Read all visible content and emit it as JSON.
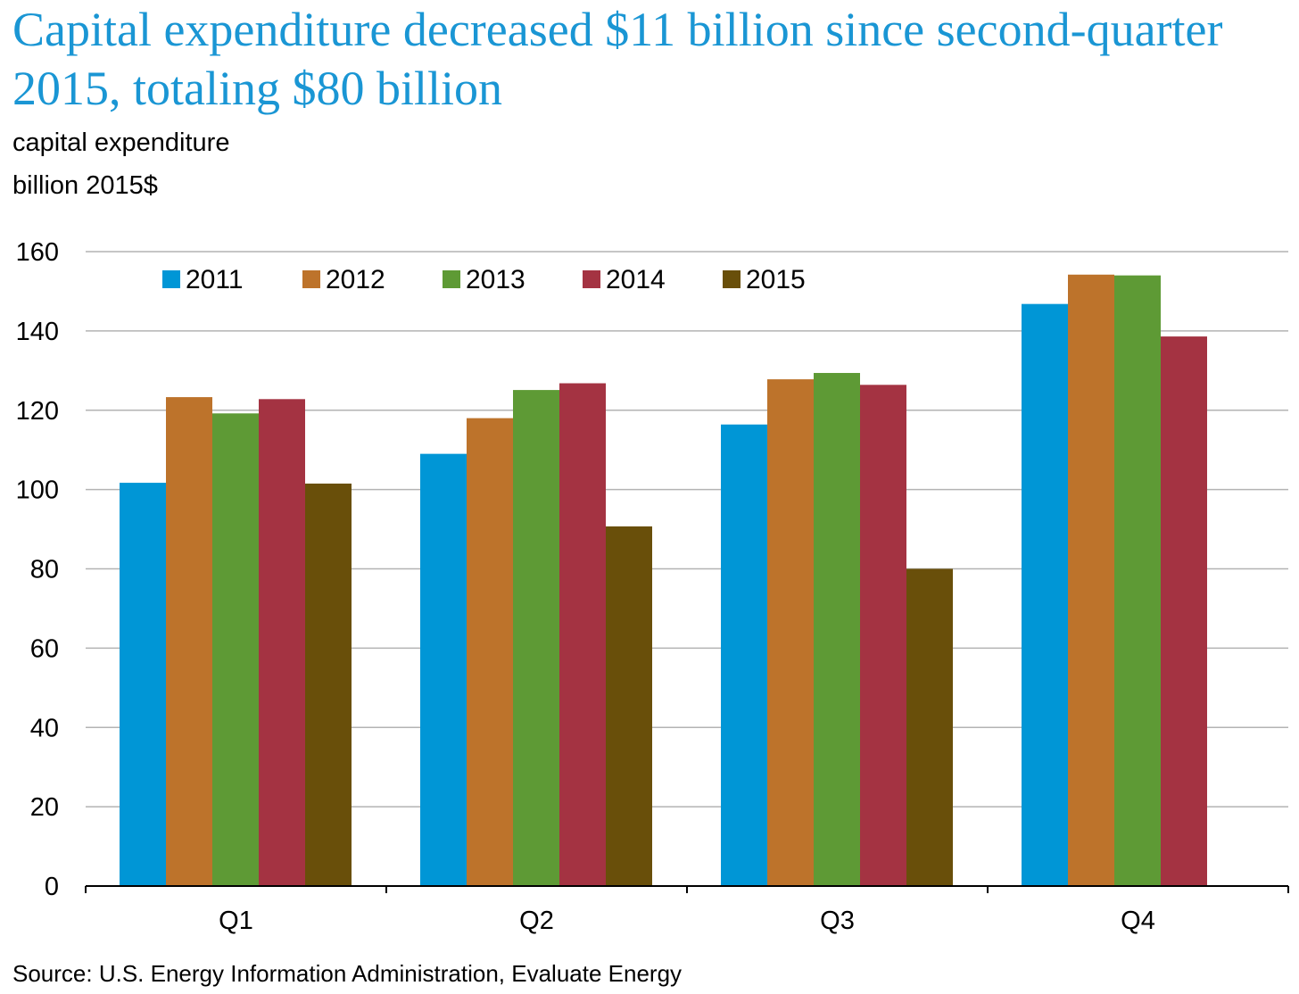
{
  "title": "Capital expenditure decreased $11 billion since second-quarter 2015, totaling $80 billion",
  "unit_line_1": "capital expenditure",
  "unit_line_2": "billion 2015$",
  "source": "Source: U.S. Energy Information Administration, Evaluate Energy",
  "colors": {
    "2011": "#0096d6",
    "2012": "#bd732b",
    "2013": "#5e9a35",
    "2014": "#a43342",
    "2015": "#694f0a",
    "grid": "#b3b3b3",
    "title": "#1a96d4"
  },
  "chart_data": {
    "type": "bar",
    "categories": [
      "Q1",
      "Q2",
      "Q3",
      "Q4"
    ],
    "series": [
      {
        "name": "2011",
        "values": [
          101.7,
          109.0,
          116.4,
          146.8
        ]
      },
      {
        "name": "2012",
        "values": [
          123.3,
          118.0,
          127.8,
          154.2
        ]
      },
      {
        "name": "2013",
        "values": [
          119.2,
          125.1,
          129.4,
          154.0
        ]
      },
      {
        "name": "2014",
        "values": [
          122.8,
          126.8,
          126.4,
          138.6
        ]
      },
      {
        "name": "2015",
        "values": [
          101.5,
          90.7,
          80.0,
          null
        ]
      }
    ],
    "ylim": [
      0,
      160
    ],
    "yticks": [
      0,
      20,
      40,
      60,
      80,
      100,
      120,
      140,
      160
    ],
    "grid": true,
    "legend_position": "top-left"
  }
}
